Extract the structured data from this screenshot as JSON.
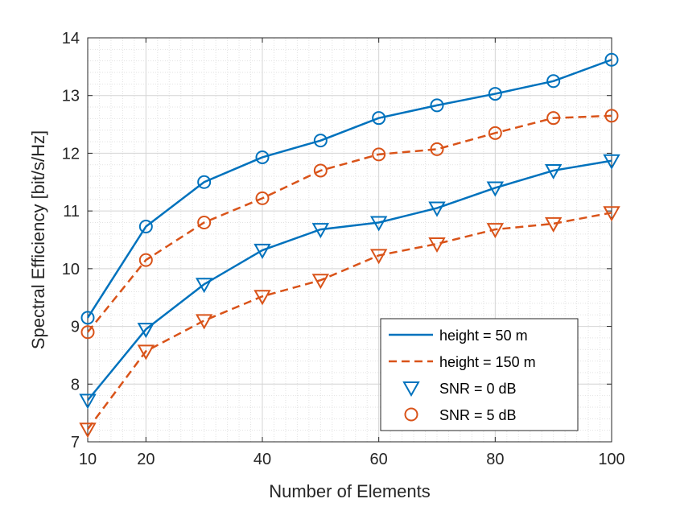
{
  "chart_data": {
    "type": "line",
    "title": "",
    "xlabel": "Number of Elements",
    "ylabel": "Spectral Efficiency [bit/s/Hz]",
    "xlim": [
      10,
      100
    ],
    "ylim": [
      7,
      14
    ],
    "xticks": [
      10,
      20,
      40,
      60,
      80,
      100
    ],
    "yticks": [
      7,
      8,
      9,
      10,
      11,
      12,
      13,
      14
    ],
    "grid": true,
    "minor_grid": true,
    "legend_position": "bottom-right",
    "x": [
      10,
      20,
      30,
      40,
      50,
      60,
      70,
      80,
      90,
      100
    ],
    "series": [
      {
        "name": "height = 50 m, SNR = 5 dB",
        "color": "#0072BD",
        "line": "solid",
        "marker": "circle",
        "values": [
          9.15,
          10.73,
          11.5,
          11.93,
          12.22,
          12.61,
          12.83,
          13.03,
          13.25,
          13.62
        ]
      },
      {
        "name": "height = 150 m, SNR = 5 dB",
        "color": "#D95319",
        "line": "dashed",
        "marker": "circle",
        "values": [
          8.9,
          10.15,
          10.8,
          11.22,
          11.7,
          11.98,
          12.07,
          12.35,
          12.61,
          12.65
        ]
      },
      {
        "name": "height = 50 m, SNR = 0 dB",
        "color": "#0072BD",
        "line": "solid",
        "marker": "triangle",
        "values": [
          7.72,
          8.95,
          9.73,
          10.32,
          10.68,
          10.8,
          11.05,
          11.4,
          11.7,
          11.87
        ]
      },
      {
        "name": "height = 150 m, SNR = 0 dB",
        "color": "#D95319",
        "line": "dashed",
        "marker": "triangle",
        "values": [
          7.22,
          8.57,
          9.1,
          9.52,
          9.8,
          10.23,
          10.43,
          10.68,
          10.78,
          10.97
        ]
      }
    ],
    "legend": [
      {
        "label": "height = 50 m",
        "kind": "line",
        "color": "#0072BD",
        "line": "solid"
      },
      {
        "label": "height = 150 m",
        "kind": "line",
        "color": "#D95319",
        "line": "dashed"
      },
      {
        "label": "SNR = 0 dB",
        "kind": "marker",
        "color": "#0072BD",
        "marker": "triangle"
      },
      {
        "label": "SNR = 5 dB",
        "kind": "marker",
        "color": "#D95319",
        "marker": "circle"
      }
    ]
  }
}
